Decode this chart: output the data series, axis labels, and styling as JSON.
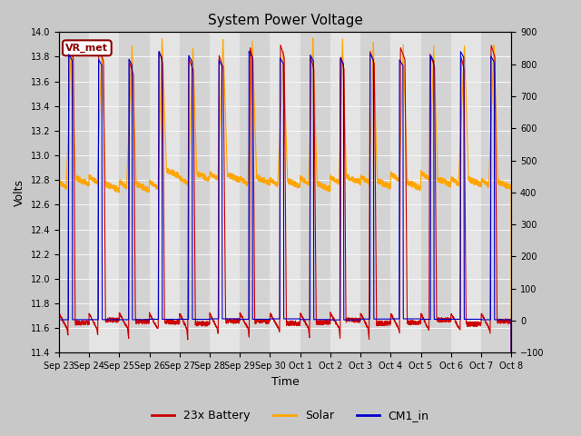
{
  "title": "System Power Voltage",
  "xlabel": "Time",
  "ylabel_left": "Volts",
  "ylim_left": [
    11.4,
    14.0
  ],
  "ylim_right": [
    -100,
    900
  ],
  "yticks_left": [
    11.4,
    11.6,
    11.8,
    12.0,
    12.2,
    12.4,
    12.6,
    12.8,
    13.0,
    13.2,
    13.4,
    13.6,
    13.8,
    14.0
  ],
  "yticks_right": [
    -100,
    0,
    100,
    200,
    300,
    400,
    500,
    600,
    700,
    800,
    900
  ],
  "xtick_labels": [
    "Sep 23",
    "Sep 24",
    "Sep 25",
    "Sep 26",
    "Sep 27",
    "Sep 28",
    "Sep 29",
    "Sep 30",
    "Oct 1",
    "Oct 2",
    "Oct 3",
    "Oct 4",
    "Oct 5",
    "Oct 6",
    "Oct 7",
    "Oct 8"
  ],
  "annotation_text": "VR_met",
  "annotation_color": "#8B0000",
  "fig_bg_color": "#C8C8C8",
  "plot_bg_color": "#E0E0E0",
  "grid_color": "#F0F0F0",
  "colors": {
    "battery": "#CC0000",
    "solar": "#FFA500",
    "cm1": "#0000CC"
  },
  "legend_labels": [
    "23x Battery",
    "Solar",
    "CM1_in"
  ],
  "n_days": 15,
  "points_per_day": 200
}
